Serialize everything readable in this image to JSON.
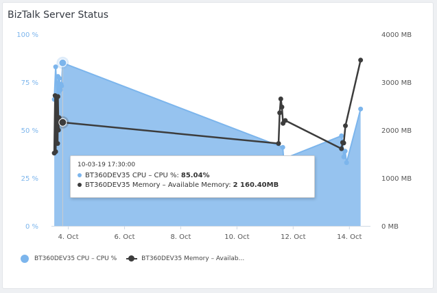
{
  "page_title": "BizTalk Server Status",
  "chart_data": {
    "type": "line",
    "x_unit": "day of October",
    "xlim": [
      3.4,
      14.75
    ],
    "x_ticks": [
      4,
      6,
      8,
      10,
      12,
      14
    ],
    "x_tick_labels": [
      "4. Oct",
      "6. Oct",
      "8. Oct",
      "10. Oct",
      "12. Oct",
      "14. Oct"
    ],
    "y_left": {
      "min": 0,
      "max": 100,
      "ticks": [
        0,
        25,
        50,
        75,
        100
      ],
      "tick_labels": [
        "0 %",
        "25 %",
        "50 %",
        "75 %",
        "100 %"
      ]
    },
    "y_right": {
      "min": 0,
      "max": 4000,
      "ticks": [
        0,
        1000,
        2000,
        3000,
        4000
      ],
      "tick_labels": [
        "0 MB",
        "1000 MB",
        "2000 MB",
        "3000 MB",
        "4000 MB"
      ]
    },
    "grid": false,
    "legend_placement": "bottom-left",
    "series": [
      {
        "name": "BT360DEV35 CPU – CPU %",
        "legend_label": "BT360DEV35 CPU – CPU %",
        "type": "area",
        "axis": "left",
        "color": "#7cb5ec",
        "fill": "#96c3ef",
        "x": [
          3.5,
          3.55,
          3.6,
          3.63,
          3.66,
          3.68,
          3.72,
          3.74,
          3.76,
          3.8,
          11.63,
          11.66,
          13.72,
          13.76,
          13.8,
          13.85,
          13.9,
          14.4
        ],
        "values": [
          66,
          83,
          67,
          78,
          70,
          77,
          71,
          74,
          73,
          85.04,
          41,
          35,
          47,
          44,
          36,
          39,
          33,
          61
        ]
      },
      {
        "name": "BT360DEV35 Memory – Available Memory",
        "legend_label": "BT360DEV35 Memory – Availab...",
        "type": "line",
        "axis": "right",
        "color": "#3c3c3c",
        "x": [
          3.5,
          3.53,
          3.55,
          3.57,
          3.59,
          3.61,
          3.62,
          3.63,
          3.65,
          3.67,
          3.8,
          11.48,
          11.52,
          11.56,
          11.6,
          11.64,
          11.72,
          13.72,
          13.76,
          13.8,
          13.86,
          14.4
        ],
        "values": [
          1520,
          2720,
          1550,
          2000,
          2680,
          2040,
          1720,
          2700,
          2000,
          2260,
          2160.4,
          1720,
          2360,
          2650,
          2480,
          2140,
          2200,
          1610,
          1740,
          1730,
          2090,
          3460
        ]
      }
    ],
    "tooltip": {
      "time": "10-03-19 17:30:00",
      "rows": [
        {
          "label": "BT360DEV35 CPU – CPU %:",
          "value": "85.04%",
          "color": "#7cb5ec"
        },
        {
          "label": "BT360DEV35 Memory – Available Memory:",
          "value": "2 160.40MB",
          "color": "#3c3c3c"
        }
      ],
      "hover_x": 3.8
    }
  }
}
